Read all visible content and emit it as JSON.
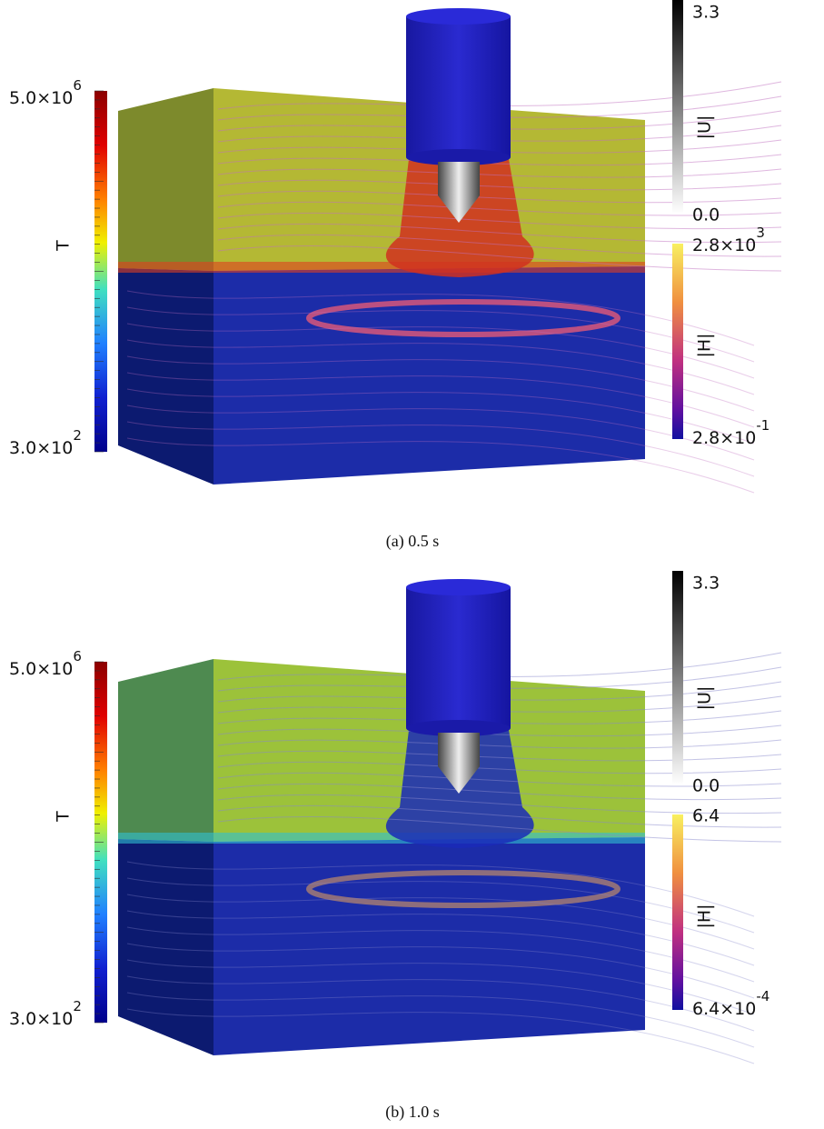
{
  "panels": [
    {
      "colorbars": {
        "T": {
          "label": "T",
          "max": {
            "base": "5.0×10",
            "exp": "6"
          },
          "min": {
            "base": "3.0×10",
            "exp": "2"
          }
        },
        "U": {
          "label": "|U|",
          "max": "3.3",
          "min": "0.0"
        },
        "H": {
          "label": "|H|",
          "max": {
            "base": "2.8×10",
            "exp": "3"
          },
          "min": {
            "base": "2.8×10",
            "exp": "-1"
          }
        }
      },
      "caption": "(a) 0.5 s"
    },
    {
      "colorbars": {
        "T": {
          "label": "T",
          "max": {
            "base": "5.0×10",
            "exp": "6"
          },
          "min": {
            "base": "3.0×10",
            "exp": "2"
          }
        },
        "U": {
          "label": "|U|",
          "max": "3.3",
          "min": "0.0"
        },
        "H": {
          "label": "|H|",
          "max": "6.4",
          "min": {
            "base": "6.4×10",
            "exp": "-4"
          }
        }
      },
      "caption": "(b) 1.0 s"
    }
  ]
}
